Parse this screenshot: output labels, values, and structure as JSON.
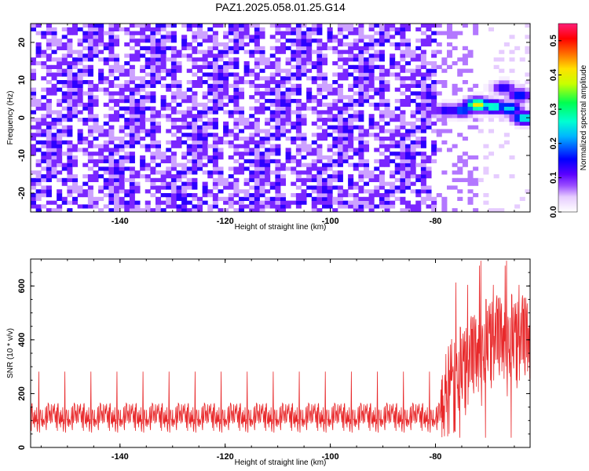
{
  "title": "PAZ1.2025.058.01.25.G14",
  "chart_data": [
    {
      "type": "heatmap",
      "xlabel": "Height of straight line (km)",
      "ylabel": "Frequency (Hz)",
      "xlim": [
        -157,
        -62
      ],
      "ylim": [
        -25,
        25
      ],
      "xticks": [
        -140,
        -120,
        -100,
        -80
      ],
      "yticks": [
        -20,
        -10,
        0,
        10,
        20
      ],
      "colorbar": {
        "label": "Normalized spectral amplitude",
        "range": [
          0.0,
          0.55
        ],
        "ticks": [
          0.0,
          0.1,
          0.2,
          0.3,
          0.4,
          0.5
        ]
      },
      "features": [
        {
          "x": -72,
          "y": 3.5,
          "value": 0.42
        },
        {
          "x": -69,
          "y": 3,
          "value": 0.3
        },
        {
          "x": -66,
          "y": 2.5,
          "value": 0.25
        },
        {
          "x": -63,
          "y": 0,
          "value": 0.28
        },
        {
          "x": -75,
          "y": 2,
          "value": 0.2
        },
        {
          "x": -78,
          "y": 2,
          "value": 0.15
        },
        {
          "x": -67,
          "y": 8,
          "value": 0.15
        },
        {
          "x": -64,
          "y": 6,
          "value": 0.18
        }
      ],
      "grid": false
    },
    {
      "type": "line",
      "xlabel": "Height of straight line (km)",
      "ylabel": "SNR (10 * v/v)",
      "xlim": [
        -157,
        -62
      ],
      "ylim": [
        0,
        700
      ],
      "xticks": [
        -140,
        -120,
        -100,
        -80
      ],
      "yticks": [
        0,
        200,
        400,
        600
      ],
      "series_color": "#e8282a",
      "baseline_mean": 110,
      "baseline_range": [
        20,
        290
      ],
      "rise_start": -79,
      "late_peak": 700,
      "grid": false
    }
  ]
}
